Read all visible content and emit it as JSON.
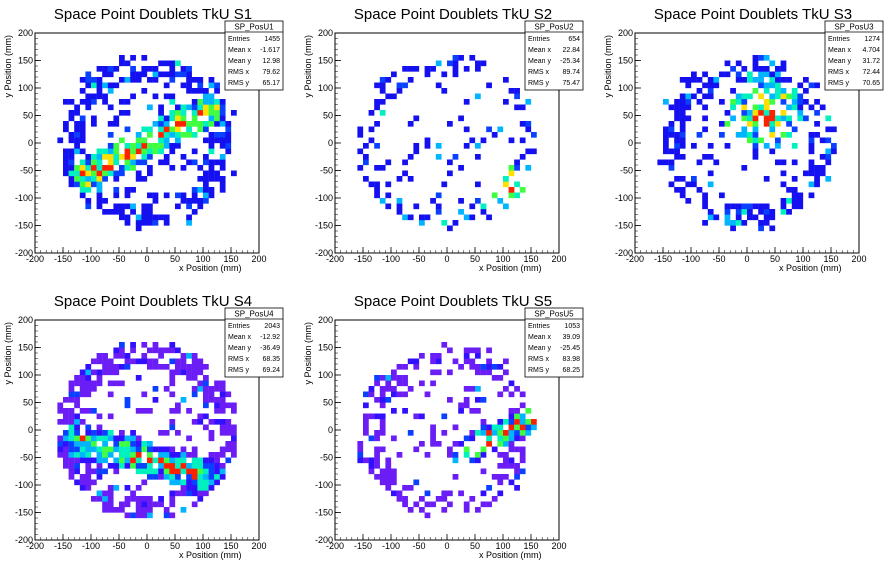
{
  "chart_data": [
    {
      "type": "heatmap",
      "name": "SP_PosU1",
      "title": "Space Point Doublets TkU S1",
      "xlabel": "x Position (mm)",
      "ylabel": "y Position (mm)",
      "xlim": [
        -200,
        200
      ],
      "ylim": [
        -200,
        200
      ],
      "xticks": [
        "-200",
        "-150",
        "-100",
        "-50",
        "0",
        "50",
        "100",
        "150",
        "200"
      ],
      "yticks": [
        "-200",
        "-150",
        "-100",
        "-50",
        "0",
        "50",
        "100",
        "150",
        "200"
      ],
      "stats": [
        {
          "label": "Entries",
          "value": "1455"
        },
        {
          "label": "Mean x",
          "value": "-1.617"
        },
        {
          "label": "Mean y",
          "value": "12.98"
        },
        {
          "label": "RMS x",
          "value": "79.62"
        },
        {
          "label": "RMS y",
          "value": "65.17"
        }
      ],
      "entries": 1455,
      "mean_x": -1.617,
      "mean_y": 12.98,
      "rms_x": 79.62,
      "rms_y": 65.17,
      "feature": {
        "kind": "band",
        "from": [
          -110,
          -60
        ],
        "to": [
          110,
          60
        ],
        "width": 28
      },
      "ring": {
        "r": 135,
        "w": 20
      },
      "palette": "rainbow",
      "seed": 11
    },
    {
      "type": "heatmap",
      "name": "SP_PosU2",
      "title": "Space Point Doublets TkU S2",
      "xlabel": "x Position (mm)",
      "ylabel": "y Position (mm)",
      "xlim": [
        -200,
        200
      ],
      "ylim": [
        -200,
        200
      ],
      "xticks": [
        "-200",
        "-150",
        "-100",
        "-50",
        "0",
        "50",
        "100",
        "150",
        "200"
      ],
      "yticks": [
        "-200",
        "-150",
        "-100",
        "-50",
        "0",
        "50",
        "100",
        "150",
        "200"
      ],
      "stats": [
        {
          "label": "Entries",
          "value": "654"
        },
        {
          "label": "Mean x",
          "value": "22.84"
        },
        {
          "label": "Mean y",
          "value": "-25.34"
        },
        {
          "label": "RMS x",
          "value": "89.74"
        },
        {
          "label": "RMS y",
          "value": "75.47"
        }
      ],
      "entries": 654,
      "mean_x": 22.84,
      "mean_y": -25.34,
      "rms_x": 89.74,
      "rms_y": 75.47,
      "feature": {
        "kind": "blob",
        "at": [
          120,
          -80
        ],
        "size": 45
      },
      "ring": {
        "r": 140,
        "w": 18
      },
      "palette": "rainbow",
      "seed": 23
    },
    {
      "type": "heatmap",
      "name": "SP_PosU3",
      "title": "Space Point Doublets TkU S3",
      "xlabel": "x Position (mm)",
      "ylabel": "y Position (mm)",
      "xlim": [
        -200,
        200
      ],
      "ylim": [
        -200,
        200
      ],
      "xticks": [
        "-200",
        "-150",
        "-100",
        "-50",
        "0",
        "50",
        "100",
        "150",
        "200"
      ],
      "yticks": [
        "-200",
        "-150",
        "-100",
        "-50",
        "0",
        "50",
        "100",
        "150",
        "200"
      ],
      "stats": [
        {
          "label": "Entries",
          "value": "1274"
        },
        {
          "label": "Mean x",
          "value": "4.704"
        },
        {
          "label": "Mean y",
          "value": "31.72"
        },
        {
          "label": "RMS x",
          "value": "72.44"
        },
        {
          "label": "RMS y",
          "value": "70.65"
        }
      ],
      "entries": 1274,
      "mean_x": 4.704,
      "mean_y": 31.72,
      "rms_x": 72.44,
      "rms_y": 70.65,
      "feature": {
        "kind": "blob",
        "at": [
          30,
          60
        ],
        "size": 70
      },
      "ring": {
        "r": 130,
        "w": 20
      },
      "palette": "rainbow",
      "seed": 37
    },
    {
      "type": "heatmap",
      "name": "SP_PosU4",
      "title": "Space Point Doublets TkU S4",
      "xlabel": "x Position (mm)",
      "ylabel": "y Position (mm)",
      "xlim": [
        -200,
        200
      ],
      "ylim": [
        -200,
        200
      ],
      "xticks": [
        "-200",
        "-150",
        "-100",
        "-50",
        "0",
        "50",
        "100",
        "150",
        "200"
      ],
      "yticks": [
        "-200",
        "-150",
        "-100",
        "-50",
        "0",
        "50",
        "100",
        "150",
        "200"
      ],
      "stats": [
        {
          "label": "Entries",
          "value": "2043"
        },
        {
          "label": "Mean x",
          "value": "-12.92"
        },
        {
          "label": "Mean y",
          "value": "-36.49"
        },
        {
          "label": "RMS x",
          "value": "68.35"
        },
        {
          "label": "RMS y",
          "value": "69.24"
        }
      ],
      "entries": 2043,
      "mean_x": -12.92,
      "mean_y": -36.49,
      "rms_x": 68.35,
      "rms_y": 69.24,
      "feature": {
        "kind": "band",
        "from": [
          -120,
          -20
        ],
        "to": [
          100,
          -80
        ],
        "width": 30
      },
      "ring": {
        "r": 140,
        "w": 22
      },
      "palette": "violet",
      "seed": 41
    },
    {
      "type": "heatmap",
      "name": "SP_PosU5",
      "title": "Space Point Doublets TkU S5",
      "xlabel": "x Position (mm)",
      "ylabel": "y Position (mm)",
      "xlim": [
        -200,
        200
      ],
      "ylim": [
        -200,
        200
      ],
      "xticks": [
        "-200",
        "-150",
        "-100",
        "-50",
        "0",
        "50",
        "100",
        "150",
        "200"
      ],
      "yticks": [
        "-200",
        "-150",
        "-100",
        "-50",
        "0",
        "50",
        "100",
        "150",
        "200"
      ],
      "stats": [
        {
          "label": "Entries",
          "value": "1053"
        },
        {
          "label": "Mean x",
          "value": "39.09"
        },
        {
          "label": "Mean y",
          "value": "-25.45"
        },
        {
          "label": "RMS x",
          "value": "83.98"
        },
        {
          "label": "RMS y",
          "value": "68.25"
        }
      ],
      "entries": 1053,
      "mean_x": 39.09,
      "mean_y": -25.45,
      "rms_x": 83.98,
      "rms_y": 68.25,
      "feature": {
        "kind": "band",
        "from": [
          30,
          -40
        ],
        "to": [
          150,
          20
        ],
        "width": 25
      },
      "ring": {
        "r": 135,
        "w": 20
      },
      "palette": "violet",
      "seed": 53
    }
  ],
  "colors": {
    "rainbow": [
      "#1410f0",
      "#0a40ff",
      "#00b4ff",
      "#00f0c0",
      "#40ff40",
      "#ffe000",
      "#ff2000"
    ],
    "violet": [
      "#6a1ef5",
      "#3010ff",
      "#0a40ff",
      "#00b4ff",
      "#00f0c0",
      "#40ff40",
      "#ff2000"
    ]
  }
}
